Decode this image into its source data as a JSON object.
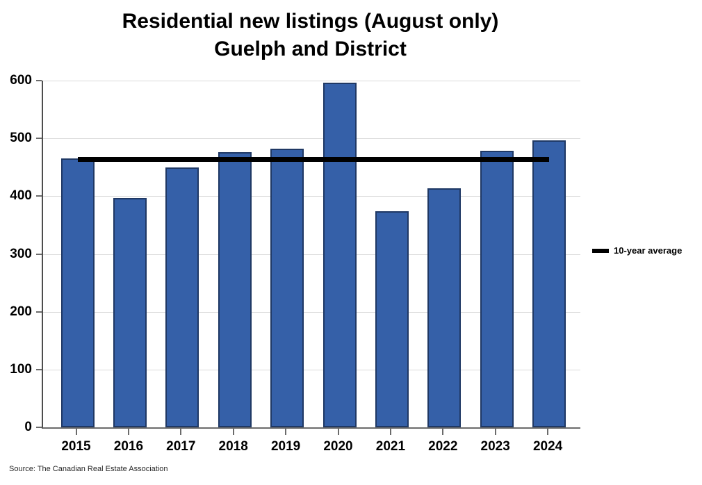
{
  "title": {
    "line1": "Residential new listings (August only)",
    "line2": "Guelph and District"
  },
  "legend": {
    "label": "10-year average"
  },
  "source": "Source: The Canadian Real Estate Association",
  "chart_data": {
    "type": "bar",
    "title": "Residential new listings (August only)",
    "subtitle": "Guelph and District",
    "categories": [
      "2015",
      "2016",
      "2017",
      "2018",
      "2019",
      "2020",
      "2021",
      "2022",
      "2023",
      "2024"
    ],
    "series": [
      {
        "name": "New listings",
        "type": "bar",
        "values": [
          465,
          397,
          450,
          476,
          482,
          597,
          374,
          414,
          478,
          497
        ]
      },
      {
        "name": "10-year average",
        "type": "line",
        "value": 463
      }
    ],
    "xlabel": "",
    "ylabel": "",
    "ylim": [
      0,
      600
    ],
    "yticks": [
      0,
      100,
      200,
      300,
      400,
      500,
      600
    ],
    "grid": true,
    "legend_position": "right",
    "source": "Source: The Canadian Real Estate Association",
    "colors": {
      "bar_fill": "#3560A8",
      "bar_border": "#1F3864",
      "average_line": "#000000",
      "gridline": "#D9D9D9",
      "axis": "#595959",
      "text": "#000000"
    }
  }
}
